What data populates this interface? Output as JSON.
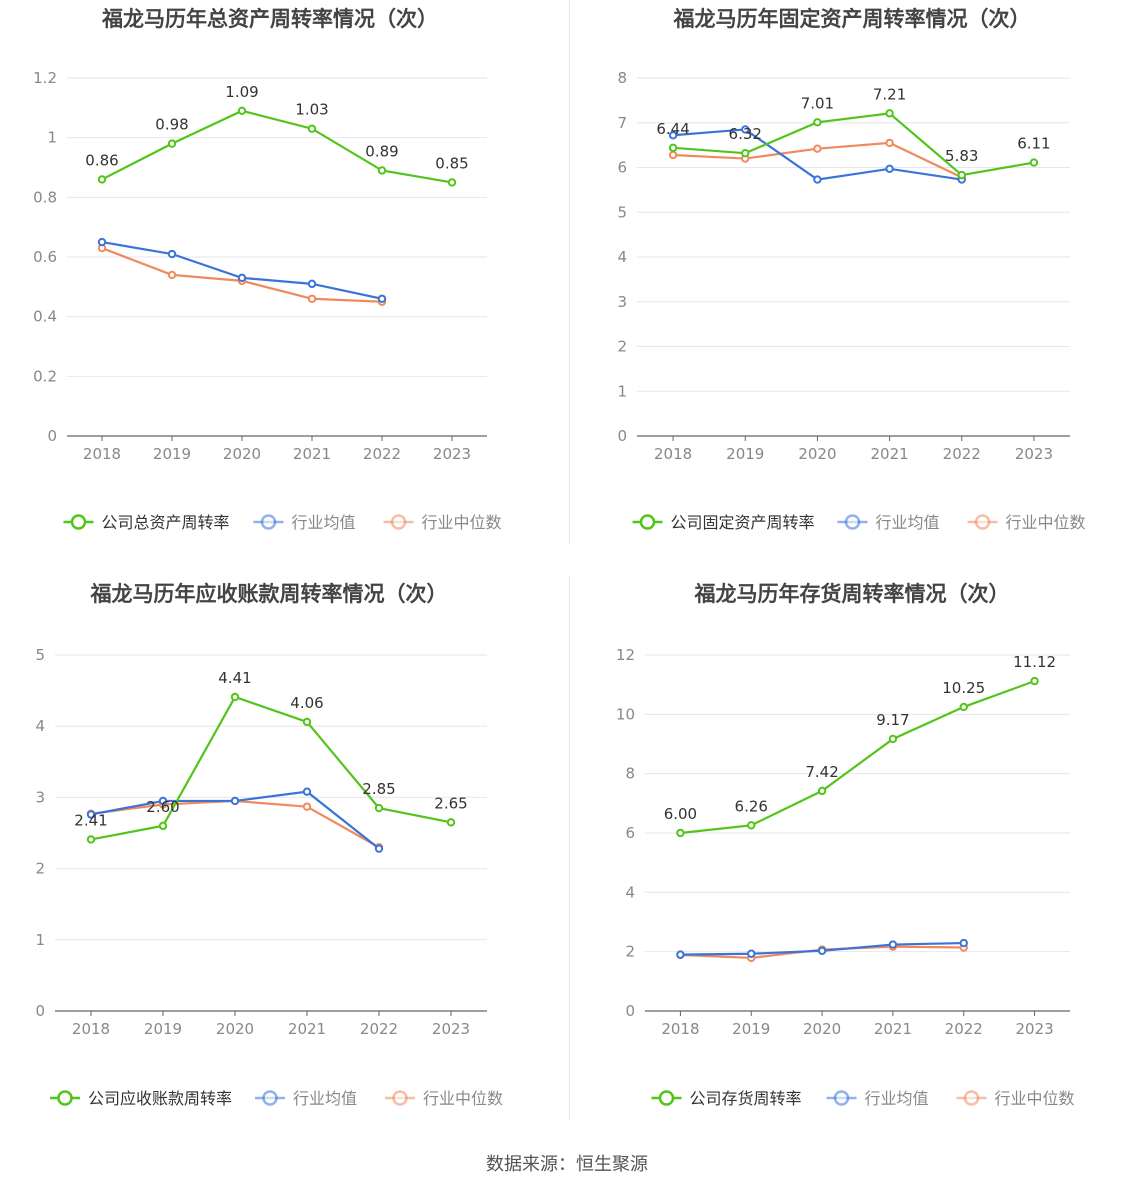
{
  "source_text": "数据来源：恒生聚源",
  "colors": {
    "company": "#52c41a",
    "avg": "#3b73d9",
    "median": "#f08a5d",
    "grid": "#e6e6ee",
    "axis": "#666666",
    "text": "#333333",
    "title": "#444444"
  },
  "chart_data": [
    {
      "type": "line",
      "title": "福龙马历年总资产周转率情况（次）",
      "categories": [
        "2018",
        "2019",
        "2020",
        "2021",
        "2022",
        "2023"
      ],
      "ylim": [
        0,
        1.2
      ],
      "yticks": [
        "0",
        "0.2",
        "0.4",
        "0.6",
        "0.8",
        "1",
        "1.2"
      ],
      "legend": [
        "公司总资产周转率",
        "行业均值",
        "行业中位数"
      ],
      "series": [
        {
          "name": "公司总资产周转率",
          "values": [
            0.86,
            0.98,
            1.09,
            1.03,
            0.89,
            0.85
          ],
          "labels": [
            "0.86",
            "0.98",
            "1.09",
            "1.03",
            "0.89",
            "0.85"
          ]
        },
        {
          "name": "行业均值",
          "values": [
            0.65,
            0.61,
            0.53,
            0.51,
            0.46,
            null
          ]
        },
        {
          "name": "行业中位数",
          "values": [
            0.63,
            0.54,
            0.52,
            0.46,
            0.45,
            null
          ]
        }
      ]
    },
    {
      "type": "line",
      "title": "福龙马历年固定资产周转率情况（次）",
      "categories": [
        "2018",
        "2019",
        "2020",
        "2021",
        "2022",
        "2023"
      ],
      "ylim": [
        0,
        8
      ],
      "yticks": [
        "0",
        "1",
        "2",
        "3",
        "4",
        "5",
        "6",
        "7",
        "8"
      ],
      "legend": [
        "公司固定资产周转率",
        "行业均值",
        "行业中位数"
      ],
      "series": [
        {
          "name": "公司固定资产周转率",
          "values": [
            6.44,
            6.32,
            7.01,
            7.21,
            5.83,
            6.11
          ],
          "labels": [
            "6.44",
            "6.32",
            "7.01",
            "7.21",
            "5.83",
            "6.11"
          ]
        },
        {
          "name": "行业均值",
          "values": [
            6.72,
            6.85,
            5.73,
            5.97,
            5.73,
            null
          ]
        },
        {
          "name": "行业中位数",
          "values": [
            6.28,
            6.2,
            6.42,
            6.55,
            5.78,
            null
          ]
        }
      ]
    },
    {
      "type": "line",
      "title": "福龙马历年应收账款周转率情况（次）",
      "categories": [
        "2018",
        "2019",
        "2020",
        "2021",
        "2022",
        "2023"
      ],
      "ylim": [
        0,
        5
      ],
      "yticks": [
        "0",
        "1",
        "2",
        "3",
        "4",
        "5"
      ],
      "legend": [
        "公司应收账款周转率",
        "行业均值",
        "行业中位数"
      ],
      "series": [
        {
          "name": "公司应收账款周转率",
          "values": [
            2.41,
            2.6,
            4.41,
            4.06,
            2.85,
            2.65
          ],
          "labels": [
            "2.41",
            "2.60",
            "4.41",
            "4.06",
            "2.85",
            "2.65"
          ]
        },
        {
          "name": "行业均值",
          "values": [
            2.76,
            2.95,
            2.95,
            3.08,
            2.28,
            null
          ]
        },
        {
          "name": "行业中位数",
          "values": [
            2.77,
            2.9,
            2.95,
            2.87,
            2.3,
            null
          ]
        }
      ]
    },
    {
      "type": "line",
      "title": "福龙马历年存货周转率情况（次）",
      "categories": [
        "2018",
        "2019",
        "2020",
        "2021",
        "2022",
        "2023"
      ],
      "ylim": [
        0,
        12
      ],
      "yticks": [
        "0",
        "2",
        "4",
        "6",
        "8",
        "10",
        "12"
      ],
      "legend": [
        "公司存货周转率",
        "行业均值",
        "行业中位数"
      ],
      "series": [
        {
          "name": "公司存货周转率",
          "values": [
            6.0,
            6.26,
            7.42,
            9.17,
            10.25,
            11.12
          ],
          "labels": [
            "6.00",
            "6.26",
            "7.42",
            "9.17",
            "10.25",
            "11.12"
          ]
        },
        {
          "name": "行业均值",
          "values": [
            1.9,
            1.93,
            2.03,
            2.24,
            2.29,
            null
          ]
        },
        {
          "name": "行业中位数",
          "values": [
            1.89,
            1.79,
            2.07,
            2.17,
            2.14,
            null
          ]
        }
      ]
    }
  ]
}
